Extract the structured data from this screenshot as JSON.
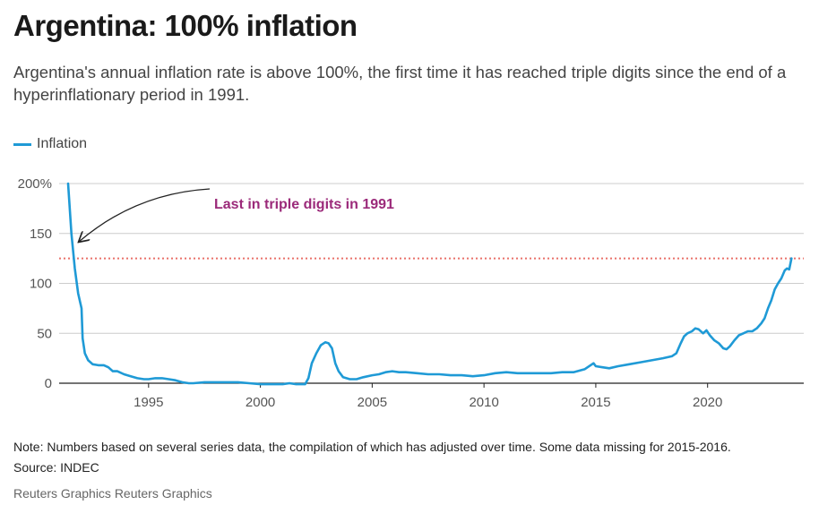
{
  "header": {
    "title": "Argentina: 100% inflation",
    "subtitle": "Argentina's annual inflation rate is above 100%, the first time it has reached triple digits since the end of a hyperinflationary period in 1991."
  },
  "footer": {
    "note": "Note: Numbers based on several series data, the compilation of which has adjusted over time. Some data missing for 2015-2016.",
    "source": "Source: INDEC",
    "credit": "Reuters Graphics Reuters Graphics"
  },
  "colors": {
    "line": "#1f9ad6",
    "annotation": "#9b2a7a",
    "threshold": "#e9726a",
    "grid": "#cccccc",
    "axis": "#222222"
  },
  "chart_data": {
    "type": "line",
    "title": "Argentina: 100% inflation",
    "xlabel": "",
    "ylabel": "",
    "xlim": [
      1991.0,
      2024.3
    ],
    "ylim": [
      0,
      200
    ],
    "grid": true,
    "legend_placement": "top-left",
    "y_ticks": [
      0,
      50,
      100,
      150,
      200
    ],
    "y_tick_labels": [
      "0",
      "50",
      "100",
      "150",
      "200%"
    ],
    "x_ticks": [
      1995,
      2000,
      2005,
      2010,
      2015,
      2020
    ],
    "x_tick_labels": [
      "1995",
      "2000",
      "2005",
      "2010",
      "2015",
      "2020"
    ],
    "threshold_line": 125,
    "annotation": {
      "text": "Last in triple digits in 1991",
      "target": [
        1991.9,
        142
      ]
    },
    "series": [
      {
        "name": "Inflation",
        "x": [
          1991.4,
          1991.55,
          1991.7,
          1991.85,
          1992.0,
          1992.05,
          1992.15,
          1992.3,
          1992.5,
          1992.75,
          1993.0,
          1993.2,
          1993.4,
          1993.6,
          1993.9,
          1994.2,
          1994.5,
          1994.8,
          1995.0,
          1995.3,
          1995.6,
          1995.9,
          1996.2,
          1996.5,
          1996.8,
          1997.0,
          1997.5,
          1998.0,
          1998.5,
          1999.0,
          1999.5,
          2000.0,
          2000.5,
          2001.0,
          2001.3,
          2001.6,
          2001.8,
          2002.0,
          2002.15,
          2002.3,
          2002.5,
          2002.7,
          2002.9,
          2003.05,
          2003.2,
          2003.35,
          2003.5,
          2003.7,
          2004.0,
          2004.3,
          2004.6,
          2005.0,
          2005.3,
          2005.6,
          2005.9,
          2006.2,
          2006.5,
          2007.0,
          2007.5,
          2008.0,
          2008.5,
          2009.0,
          2009.5,
          2010.0,
          2010.5,
          2011.0,
          2011.5,
          2012.0,
          2012.5,
          2013.0,
          2013.5,
          2014.0,
          2014.5,
          2014.9,
          2015.0,
          2015.3,
          2015.6,
          2016.0,
          2016.5,
          2017.0,
          2017.5,
          2018.0,
          2018.4,
          2018.6,
          2018.8,
          2018.95,
          2019.1,
          2019.3,
          2019.45,
          2019.6,
          2019.8,
          2019.95,
          2020.1,
          2020.3,
          2020.5,
          2020.7,
          2020.85,
          2021.0,
          2021.2,
          2021.4,
          2021.6,
          2021.8,
          2022.0,
          2022.2,
          2022.4,
          2022.55,
          2022.7,
          2022.85,
          2023.0,
          2023.15,
          2023.3,
          2023.45,
          2023.55,
          2023.65,
          2023.75
        ],
        "values": [
          200,
          150,
          115,
          90,
          75,
          45,
          30,
          23,
          19,
          18,
          18,
          16,
          12,
          12,
          9,
          7,
          5,
          4,
          4,
          5,
          5,
          4,
          3,
          1,
          0,
          0,
          1,
          1,
          1,
          1,
          0,
          -1,
          -1,
          -1,
          0,
          -1,
          -1,
          -1,
          5,
          20,
          30,
          38,
          41,
          40,
          35,
          20,
          12,
          6,
          4,
          4,
          6,
          8,
          9,
          11,
          12,
          11,
          11,
          10,
          9,
          9,
          8,
          8,
          7,
          8,
          10,
          11,
          10,
          10,
          10,
          10,
          11,
          11,
          14,
          20,
          17,
          16,
          15,
          17,
          19,
          21,
          23,
          25,
          27,
          30,
          40,
          47,
          50,
          52,
          55,
          54,
          50,
          53,
          48,
          43,
          40,
          35,
          34,
          37,
          43,
          48,
          50,
          52,
          52,
          55,
          60,
          65,
          75,
          83,
          94,
          100,
          105,
          113,
          115,
          114,
          125
        ]
      }
    ]
  }
}
